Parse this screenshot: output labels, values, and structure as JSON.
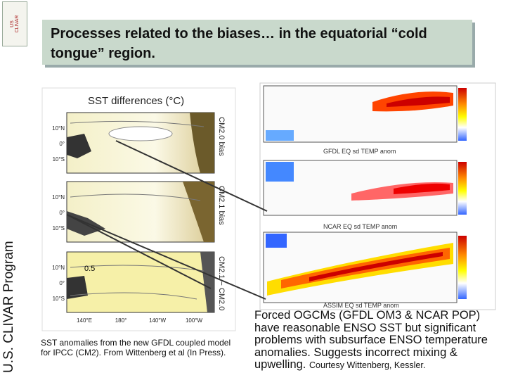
{
  "sidebar": {
    "program": "U.S. CLIVAR Program",
    "logo": "US CLIVAR"
  },
  "header": {
    "title": "Processes related to the biases… in the equatorial “cold tongue” region."
  },
  "left_figure": {
    "title": "SST differences (°C)",
    "panels": [
      "CM2.0 bias",
      "CM2.1 bias",
      "CM2.1 − CM2.0"
    ],
    "lat_labels": [
      "10°N",
      "0°",
      "10°S"
    ],
    "lon_labels": [
      "140°E",
      "180°",
      "140°W",
      "100°W"
    ],
    "contour_label": "0.5",
    "caption": "SST anomalies from the new GFDL coupled model for IPCC (CM2). From Wittenberg et al (In Press)."
  },
  "right_figure": {
    "panels": [
      "GFDL EQ sd TEMP anom",
      "NCAR EQ sd TEMP anom",
      "ASSIM EQ sd TEMP anom"
    ],
    "caption": "Forced OGCMs (GFDL OM3 & NCAR POP) have reasonable ENSO SST but significant problems with subsurface ENSO temperature anomalies. Suggests incorrect mixing & upwelling.",
    "credit": "Courtesy Wittenberg, Kessler."
  }
}
